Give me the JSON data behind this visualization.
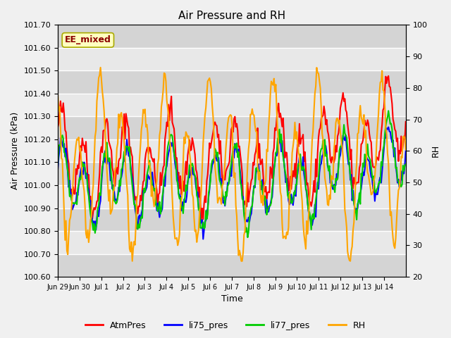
{
  "title": "Air Pressure and RH",
  "xlabel": "Time",
  "ylabel_left": "Air Pressure (kPa)",
  "ylabel_right": "RH",
  "ylim_left": [
    100.6,
    101.7
  ],
  "ylim_right": [
    20,
    100
  ],
  "yticks_left": [
    100.6,
    100.7,
    100.8,
    100.9,
    101.0,
    101.1,
    101.2,
    101.3,
    101.4,
    101.5,
    101.6,
    101.7
  ],
  "yticks_right": [
    20,
    30,
    40,
    50,
    60,
    70,
    80,
    90,
    100
  ],
  "xtick_labels": [
    "Jun 29",
    "Jun 30",
    "Jul 1",
    "Jul 2",
    "Jul 3",
    "Jul 4",
    "Jul 5",
    "Jul 6",
    "Jul 7",
    "Jul 8",
    "Jul 9",
    "Jul 10",
    "Jul 11",
    "Jul 12",
    "Jul 13",
    "Jul 14"
  ],
  "annotation_text": "EE_mixed",
  "annotation_color": "#8B0000",
  "annotation_bg": "#FFFFC0",
  "colors": {
    "AtmPres": "#FF0000",
    "li75_pres": "#0000FF",
    "li77_pres": "#00CC00",
    "RH": "#FFA500"
  },
  "line_widths": {
    "AtmPres": 1.5,
    "li75_pres": 1.5,
    "li77_pres": 1.5,
    "RH": 1.5
  },
  "fig_bg_color": "#F0F0F0",
  "plot_bg_color": "#E8E8E8",
  "grid_color": "#FFFFFF",
  "legend_labels": [
    "AtmPres",
    "li75_pres",
    "li77_pres",
    "RH"
  ]
}
